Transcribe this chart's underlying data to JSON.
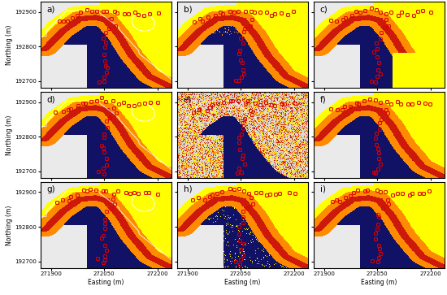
{
  "nrows": 3,
  "ncols": 3,
  "labels": [
    "a)",
    "b)",
    "c)",
    "d)",
    "e)",
    "f)",
    "g)",
    "h)",
    "i)"
  ],
  "xlim": [
    271870,
    272240
  ],
  "ylim": [
    192680,
    192930
  ],
  "xticks": [
    271900,
    272050,
    272200
  ],
  "yticks": [
    192700,
    192800,
    192900
  ],
  "xlabel": "Easting (m)",
  "ylabel": "Northing (m)",
  "navy": [
    0.07,
    0.07,
    0.4
  ],
  "yellow": [
    1.0,
    1.0,
    0.0
  ],
  "orange": [
    1.0,
    0.55,
    0.0
  ],
  "red_orange": [
    0.8,
    0.1,
    0.05
  ],
  "white_bg": [
    0.92,
    0.92,
    0.92
  ],
  "figsize": [
    5.5,
    3.63
  ],
  "dpi": 100
}
